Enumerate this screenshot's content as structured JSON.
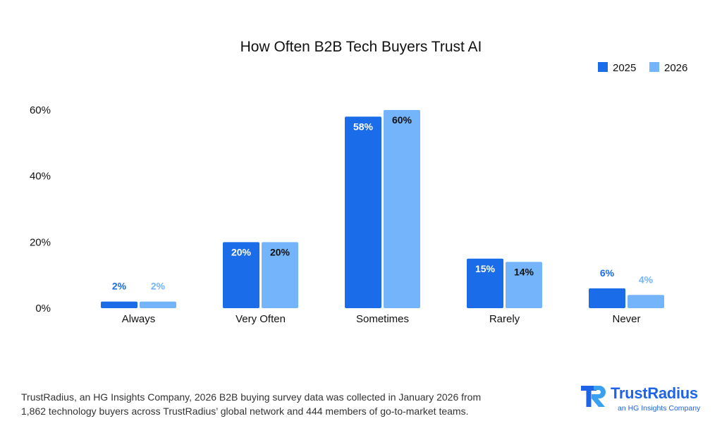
{
  "colors": {
    "series_2025": "#1a6ce8",
    "series_2026": "#73b4fb",
    "label_dark": "#111111",
    "label_white": "#ffffff",
    "brand": "#1f63e6"
  },
  "chart_data": {
    "type": "bar",
    "title": "How Often B2B Tech Buyers Trust AI",
    "xlabel": "",
    "ylabel": "",
    "categories": [
      "Always",
      "Very Often",
      "Sometimes",
      "Rarely",
      "Never"
    ],
    "series": [
      {
        "name": "2025",
        "values": [
          2,
          20,
          58,
          15,
          6
        ],
        "labels": [
          "2%",
          "20%",
          "58%",
          "15%",
          "6%"
        ]
      },
      {
        "name": "2026",
        "values": [
          2,
          20,
          60,
          14,
          4
        ],
        "labels": [
          "2%",
          "20%",
          "60%",
          "14%",
          "4%"
        ]
      }
    ],
    "ylim": [
      0,
      60
    ],
    "yticks": [
      0,
      20,
      40,
      60
    ],
    "ytick_labels": [
      "0%",
      "20%",
      "40%",
      "60%"
    ],
    "grid": false,
    "legend_position": "top-right"
  },
  "footnote": {
    "line1": "TrustRadius, an HG Insights Company, 2026 B2B buying survey data was collected in January 2026 from",
    "line2": "1,862 technology buyers across TrustRadius’ global network and 444 members of go-to-market teams."
  },
  "logo": {
    "wordmark": "TrustRadius",
    "tagline": "an HG Insights Company",
    "icon": "trustradius-logo-icon"
  }
}
